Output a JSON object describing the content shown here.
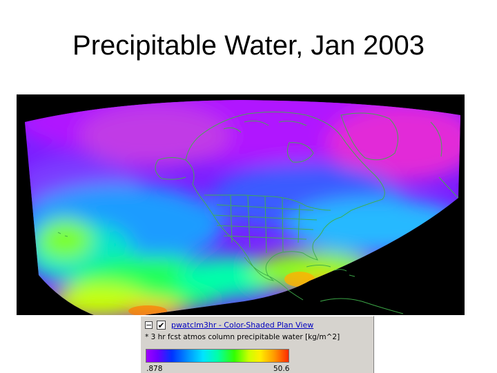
{
  "slide": {
    "title": "Precipitable Water, Jan 2003"
  },
  "map": {
    "background_color": "#000000",
    "boundary_color": "#3fae4a",
    "colormap": [
      "#a000ff",
      "#6b00ff",
      "#0033ff",
      "#0099ff",
      "#00e5ff",
      "#00ffaa",
      "#33ff00",
      "#ccff00",
      "#ffee00",
      "#ff9900",
      "#ff2a00"
    ]
  },
  "legend": {
    "collapse_symbol": "−",
    "checkbox_symbol": "✔",
    "layer_name": "pwatclm3hr - Color-Shaded Plan View",
    "description": "* 3 hr fcst atmos column precipitable water [kg/m^2]",
    "min_value": ".878",
    "max_value": "50.6"
  }
}
